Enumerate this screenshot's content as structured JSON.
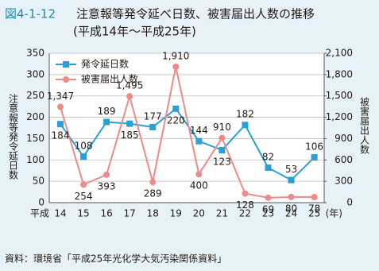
{
  "chart_data": {
    "type": "line",
    "figure_number": "図4-1-12",
    "title": "注意報等発令延べ日数、被害届出人数の推移",
    "subtitle": "(平成14年〜平成25年)",
    "y_label": "注意報等発令延日数",
    "y2_label": "被害届出人数",
    "x_prefix": "平成",
    "x_unit": "(年)",
    "categories": [
      "14",
      "15",
      "16",
      "17",
      "18",
      "19",
      "20",
      "21",
      "22",
      "23",
      "24",
      "25"
    ],
    "series": [
      {
        "name": "発令延日数",
        "color": "#2aa0d6",
        "marker": "square",
        "values": [
          184,
          108,
          189,
          185,
          177,
          220,
          144,
          123,
          182,
          82,
          53,
          106
        ]
      },
      {
        "name": "被害届出人数",
        "color": "#ef8a8a",
        "marker": "circle",
        "axis": "y2",
        "values": [
          1347,
          254,
          393,
          1495,
          289,
          1910,
          400,
          910,
          128,
          69,
          80,
          78
        ],
        "value_labels": [
          "1,347",
          "254",
          "393",
          "1,495",
          "289",
          "1,910",
          "400",
          "910",
          "128",
          "69",
          "80",
          "78"
        ]
      }
    ],
    "ylim": [
      0,
      350
    ],
    "yticks": [
      0,
      50,
      100,
      150,
      200,
      250,
      300,
      350
    ],
    "y2lim": [
      0,
      2100
    ],
    "y2ticks": [
      0,
      300,
      600,
      900,
      {
        "value": 1200,
        "label": "1,200"
      },
      {
        "value": 1500,
        "label": "1,500"
      },
      {
        "value": 1800,
        "label": "1,800"
      },
      {
        "value": 2100,
        "label": "2,100"
      }
    ],
    "grid": true,
    "legend": "upper left",
    "source": "資料：環境省「平成25年光化学大気汚染関係資料」"
  }
}
